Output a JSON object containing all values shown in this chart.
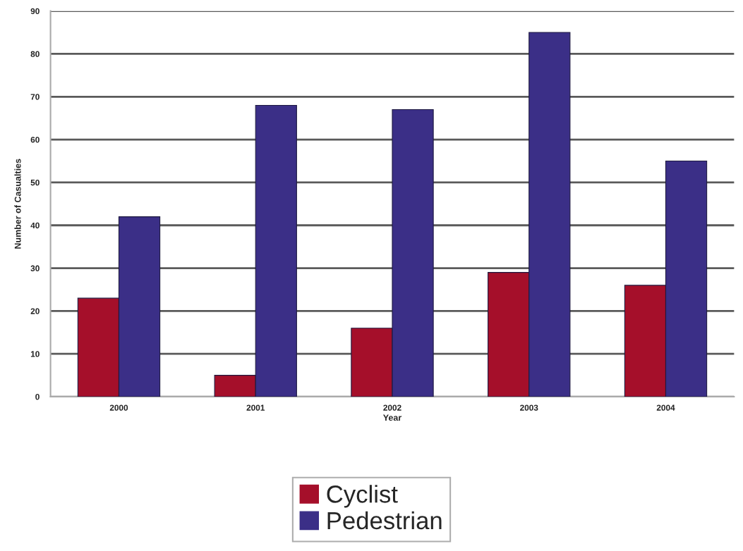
{
  "chart_data": {
    "type": "bar",
    "xlabel": "Year",
    "ylabel": "Number of Casualties",
    "categories": [
      "2000",
      "2001",
      "2002",
      "2003",
      "2004"
    ],
    "series": [
      {
        "name": "Cyclist",
        "color": "#a50f2a",
        "values": [
          23,
          5,
          16,
          29,
          26
        ]
      },
      {
        "name": "Pedestrian",
        "color": "#3b2f87",
        "values": [
          42,
          68,
          67,
          85,
          55
        ]
      }
    ],
    "ylim": [
      0,
      90
    ],
    "yticks": [
      0,
      10,
      20,
      30,
      40,
      50,
      60,
      70,
      80,
      90
    ],
    "grid": "y",
    "legend": "bottom"
  }
}
